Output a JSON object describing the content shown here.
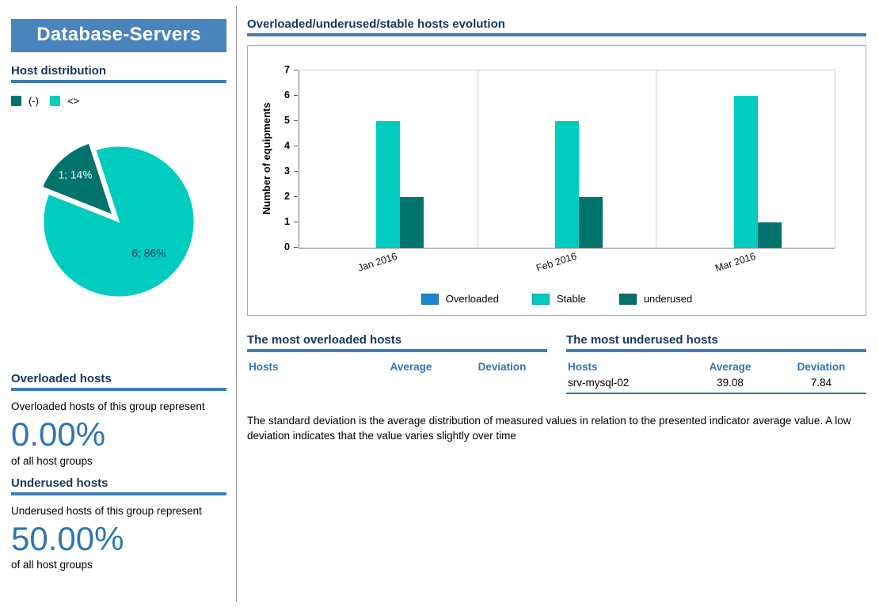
{
  "sidebar": {
    "title": "Database-Servers",
    "host_distribution": {
      "heading": "Host distribution",
      "legend": [
        {
          "label": "(-)",
          "color": "#00736D"
        },
        {
          "label": "<>",
          "color": "#00CDBF"
        }
      ]
    },
    "overloaded": {
      "heading": "Overloaded hosts",
      "description": "Overloaded hosts of this group represent",
      "percent": "0.00%",
      "caption": "of all host groups"
    },
    "underused": {
      "heading": "Underused hosts",
      "description": "Underused hosts of this group represent",
      "percent": "50.00%",
      "caption": "of all host groups"
    }
  },
  "main": {
    "chart_heading": "Overloaded/underused/stable hosts evolution",
    "overloaded_table": {
      "title": "The most overloaded hosts",
      "columns": [
        "Hosts",
        "Average",
        "Deviation"
      ],
      "rows": []
    },
    "underused_table": {
      "title": "The most underused hosts",
      "columns": [
        "Hosts",
        "Average",
        "Deviation"
      ],
      "rows": [
        [
          "srv-mysql-02",
          "39.08",
          "7.84"
        ]
      ]
    },
    "note": "The standard deviation is the average distribution of measured values in relation to the presented indicator average value. A low  deviation indicates that the value varies slightly over time"
  },
  "chart_data": [
    {
      "type": "pie",
      "title": "Host distribution",
      "labels": [
        "(-)",
        "<>"
      ],
      "values": [
        1,
        6
      ],
      "start_angle": 108,
      "slices": [
        {
          "label": "1; 14%",
          "value": 1,
          "percent": 14,
          "color": "#00736D",
          "text_color": "#FFFFFF",
          "explode": true
        },
        {
          "label": "6; 86%",
          "value": 6,
          "percent": 86,
          "color": "#00CDBF",
          "text_color": "#17365D",
          "explode": false
        }
      ]
    },
    {
      "type": "bar",
      "title": "Overloaded/underused/stable hosts evolution",
      "categories": [
        "Jan 2016",
        "Feb 2016",
        "Mar 2016"
      ],
      "series": [
        {
          "name": "Overloaded",
          "color": "#1C86D1",
          "values": [
            0,
            0,
            0
          ]
        },
        {
          "name": "Stable",
          "color": "#00CDBF",
          "values": [
            5,
            5,
            6
          ]
        },
        {
          "name": "underused",
          "color": "#00736D",
          "values": [
            2,
            2,
            1
          ]
        }
      ],
      "xlabel": "",
      "ylabel": "Number of equipments",
      "ylim": [
        0,
        7
      ],
      "yticks": [
        0,
        1,
        2,
        3,
        4,
        5,
        6,
        7
      ],
      "legend_position": "bottom",
      "grid": "vertical-separators"
    }
  ],
  "colors": {
    "header_bg": "#4A84BC",
    "heading_text": "#17365D",
    "rule_bar": "#3E7CB6",
    "accent_blue": "#2E75B6",
    "stable_teal": "#00CDBF",
    "underused_dark_teal": "#00736D",
    "overloaded_blue": "#1C86D1"
  }
}
